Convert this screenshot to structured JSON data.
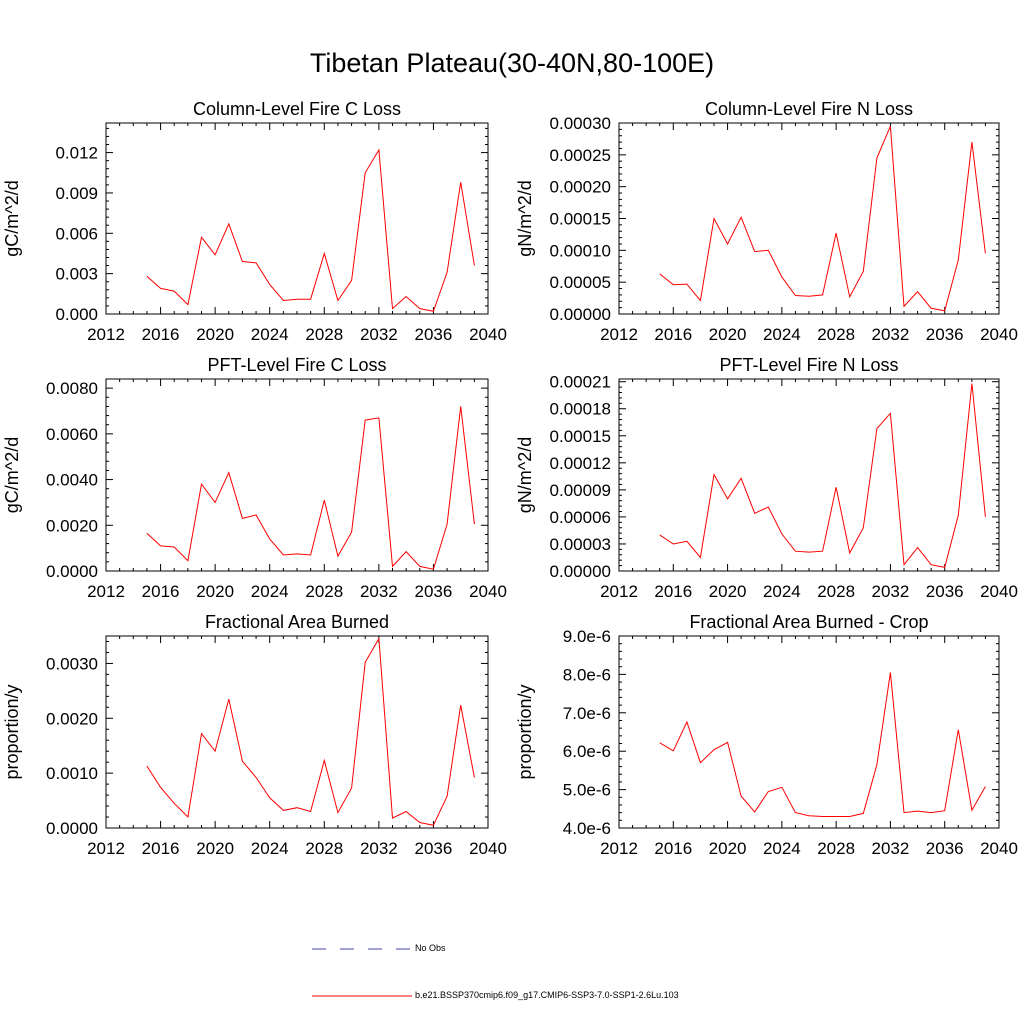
{
  "page_title": "Tibetan Plateau(30-40N,80-100E)",
  "colors": {
    "model": "#ff0000",
    "obs": "#4444aa"
  },
  "legend": {
    "obs_label": "No Obs",
    "model_label": "b.e21.BSSP370cmip6.f09_g17.CMIP6-SSP3-7.0-SSP1-2.6Lu.103"
  },
  "chart_data": [
    {
      "type": "line",
      "title": "Column-Level Fire C Loss",
      "ylabel": "gC/m^2/d",
      "xlim": [
        2012,
        2040
      ],
      "ylim": [
        0,
        0.0142
      ],
      "xticks": [
        2012,
        2016,
        2020,
        2024,
        2028,
        2032,
        2036,
        2040
      ],
      "xtick_labels": [
        "2012",
        "2016",
        "2020",
        "2024",
        "2028",
        "2032",
        "2036",
        "2040"
      ],
      "yticks": [
        0,
        0.003,
        0.006,
        0.009,
        0.012
      ],
      "ytick_labels": [
        "0.000",
        "0.003",
        "0.006",
        "0.009",
        "0.012"
      ],
      "x": [
        2015,
        2016,
        2017,
        2018,
        2019,
        2020,
        2021,
        2022,
        2023,
        2024,
        2025,
        2026,
        2027,
        2028,
        2029,
        2030,
        2031,
        2032,
        2033,
        2034,
        2035,
        2036,
        2037,
        2038,
        2039
      ],
      "values": [
        0.0028,
        0.0019,
        0.0017,
        0.0007,
        0.0057,
        0.0044,
        0.0067,
        0.0039,
        0.0038,
        0.0022,
        0.001,
        0.0011,
        0.0011,
        0.0045,
        0.001,
        0.0025,
        0.0105,
        0.0122,
        0.0004,
        0.0013,
        0.0004,
        0.0002,
        0.0031,
        0.0098,
        0.0036
      ]
    },
    {
      "type": "line",
      "title": "Column-Level Fire N Loss",
      "ylabel": "gN/m^2/d",
      "xlim": [
        2012,
        2040
      ],
      "ylim": [
        0,
        0.0003
      ],
      "xticks": [
        2012,
        2016,
        2020,
        2024,
        2028,
        2032,
        2036,
        2040
      ],
      "xtick_labels": [
        "2012",
        "2016",
        "2020",
        "2024",
        "2028",
        "2032",
        "2036",
        "2040"
      ],
      "yticks": [
        0,
        5e-05,
        0.0001,
        0.00015,
        0.0002,
        0.00025,
        0.0003
      ],
      "ytick_labels": [
        "0.00000",
        "0.00005",
        "0.00010",
        "0.00015",
        "0.00020",
        "0.00025",
        "0.00030"
      ],
      "x": [
        2015,
        2016,
        2017,
        2018,
        2019,
        2020,
        2021,
        2022,
        2023,
        2024,
        2025,
        2026,
        2027,
        2028,
        2029,
        2030,
        2031,
        2032,
        2033,
        2034,
        2035,
        2036,
        2037,
        2038,
        2039
      ],
      "values": [
        6.3e-05,
        4.6e-05,
        4.7e-05,
        2.1e-05,
        0.00015,
        0.00011,
        0.000152,
        9.8e-05,
        0.0001,
        5.8e-05,
        2.9e-05,
        2.8e-05,
        3e-05,
        0.000127,
        2.7e-05,
        6.7e-05,
        0.000245,
        0.000295,
        1.2e-05,
        3.5e-05,
        9e-06,
        5e-06,
        8.5e-05,
        0.00027,
        9.5e-05
      ]
    },
    {
      "type": "line",
      "title": "PFT-Level Fire C Loss",
      "ylabel": "gC/m^2/d",
      "xlim": [
        2012,
        2040
      ],
      "ylim": [
        0,
        0.0084
      ],
      "xticks": [
        2012,
        2016,
        2020,
        2024,
        2028,
        2032,
        2036,
        2040
      ],
      "xtick_labels": [
        "2012",
        "2016",
        "2020",
        "2024",
        "2028",
        "2032",
        "2036",
        "2040"
      ],
      "yticks": [
        0,
        0.002,
        0.004,
        0.006,
        0.008
      ],
      "ytick_labels": [
        "0.0000",
        "0.0020",
        "0.0040",
        "0.0060",
        "0.0080"
      ],
      "x": [
        2015,
        2016,
        2017,
        2018,
        2019,
        2020,
        2021,
        2022,
        2023,
        2024,
        2025,
        2026,
        2027,
        2028,
        2029,
        2030,
        2031,
        2032,
        2033,
        2034,
        2035,
        2036,
        2037,
        2038,
        2039
      ],
      "values": [
        0.00165,
        0.0011,
        0.00105,
        0.00045,
        0.0038,
        0.003,
        0.0043,
        0.0023,
        0.00245,
        0.0014,
        0.0007,
        0.00075,
        0.0007,
        0.0031,
        0.00065,
        0.0017,
        0.0066,
        0.0067,
        0.0002,
        0.00085,
        0.0002,
        8e-05,
        0.00205,
        0.0072,
        0.00205
      ]
    },
    {
      "type": "line",
      "title": "PFT-Level Fire N Loss",
      "ylabel": "gN/m^2/d",
      "xlim": [
        2012,
        2040
      ],
      "ylim": [
        0,
        0.000213
      ],
      "xticks": [
        2012,
        2016,
        2020,
        2024,
        2028,
        2032,
        2036,
        2040
      ],
      "xtick_labels": [
        "2012",
        "2016",
        "2020",
        "2024",
        "2028",
        "2032",
        "2036",
        "2040"
      ],
      "yticks": [
        0,
        3e-05,
        6e-05,
        9e-05,
        0.00012,
        0.00015,
        0.00018,
        0.00021
      ],
      "ytick_labels": [
        "0.00000",
        "0.00003",
        "0.00006",
        "0.00009",
        "0.00012",
        "0.00015",
        "0.00018",
        "0.00021"
      ],
      "x": [
        2015,
        2016,
        2017,
        2018,
        2019,
        2020,
        2021,
        2022,
        2023,
        2024,
        2025,
        2026,
        2027,
        2028,
        2029,
        2030,
        2031,
        2032,
        2033,
        2034,
        2035,
        2036,
        2037,
        2038,
        2039
      ],
      "values": [
        4e-05,
        3e-05,
        3.3e-05,
        1.5e-05,
        0.000107,
        8e-05,
        0.000103,
        6.4e-05,
        7.1e-05,
        4.1e-05,
        2.2e-05,
        2.1e-05,
        2.2e-05,
        9.3e-05,
        2e-05,
        4.8e-05,
        0.000158,
        0.000175,
        7e-06,
        2.6e-05,
        7e-06,
        4e-06,
        6.2e-05,
        0.000208,
        6e-05
      ]
    },
    {
      "type": "line",
      "title": "Fractional Area Burned",
      "ylabel": "proportion/y",
      "xlim": [
        2012,
        2040
      ],
      "ylim": [
        0,
        0.0035
      ],
      "xticks": [
        2012,
        2016,
        2020,
        2024,
        2028,
        2032,
        2036,
        2040
      ],
      "xtick_labels": [
        "2012",
        "2016",
        "2020",
        "2024",
        "2028",
        "2032",
        "2036",
        "2040"
      ],
      "yticks": [
        0,
        0.001,
        0.002,
        0.003
      ],
      "ytick_labels": [
        "0.0000",
        "0.0010",
        "0.0020",
        "0.0030"
      ],
      "x": [
        2015,
        2016,
        2017,
        2018,
        2019,
        2020,
        2021,
        2022,
        2023,
        2024,
        2025,
        2026,
        2027,
        2028,
        2029,
        2030,
        2031,
        2032,
        2033,
        2034,
        2035,
        2036,
        2037,
        2038,
        2039
      ],
      "values": [
        0.00113,
        0.00074,
        0.00045,
        0.0002,
        0.00172,
        0.0014,
        0.00235,
        0.00122,
        0.00092,
        0.00055,
        0.00032,
        0.00037,
        0.0003,
        0.00123,
        0.00028,
        0.00073,
        0.00302,
        0.00345,
        0.00018,
        0.0003,
        0.0001,
        5e-05,
        0.00058,
        0.00224,
        0.00092
      ]
    },
    {
      "type": "line",
      "title": "Fractional Area Burned - Crop",
      "ylabel": "proportion/y",
      "xlim": [
        2012,
        2040
      ],
      "ylim": [
        4e-06,
        9e-06
      ],
      "xticks": [
        2012,
        2016,
        2020,
        2024,
        2028,
        2032,
        2036,
        2040
      ],
      "xtick_labels": [
        "2012",
        "2016",
        "2020",
        "2024",
        "2028",
        "2032",
        "2036",
        "2040"
      ],
      "yticks": [
        4e-06,
        5e-06,
        6e-06,
        7e-06,
        8e-06,
        9e-06
      ],
      "ytick_labels": [
        "4.0e-6",
        "5.0e-6",
        "6.0e-6",
        "7.0e-6",
        "8.0e-6",
        "9.0e-6"
      ],
      "x": [
        2015,
        2016,
        2017,
        2018,
        2019,
        2020,
        2021,
        2022,
        2023,
        2024,
        2025,
        2026,
        2027,
        2028,
        2029,
        2030,
        2031,
        2032,
        2033,
        2034,
        2035,
        2036,
        2037,
        2038,
        2039
      ],
      "values": [
        6.22e-06,
        6.01e-06,
        6.76e-06,
        5.7e-06,
        6.04e-06,
        6.23e-06,
        4.83e-06,
        4.42e-06,
        4.95e-06,
        5.06e-06,
        4.4e-06,
        4.32e-06,
        4.3e-06,
        4.3e-06,
        4.3e-06,
        4.38e-06,
        5.65e-06,
        8.05e-06,
        4.4e-06,
        4.44e-06,
        4.4e-06,
        4.45e-06,
        6.56e-06,
        4.46e-06,
        5.08e-06
      ]
    }
  ]
}
